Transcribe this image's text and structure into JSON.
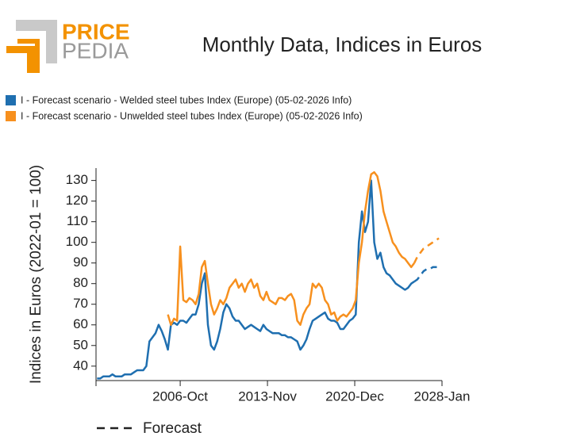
{
  "logo": {
    "top": "PRICE",
    "bottom": "PEDIA"
  },
  "chart_data": {
    "type": "line",
    "title": "Monthly Data, Indices in Euros",
    "y_label": "Indices in Euros (2022-01 = 100)",
    "forecast_label": "Forecast",
    "xlim": [
      "1999-Dec",
      "2028-Jan"
    ],
    "xticks": [
      "2006-Oct",
      "2013-Nov",
      "2020-Dec",
      "2028-Jan"
    ],
    "ylim": [
      33,
      136
    ],
    "yticks": [
      40,
      50,
      60,
      70,
      80,
      90,
      100,
      110,
      120,
      130
    ],
    "grid": false,
    "x": [
      "2000-Jan",
      "2000-Apr",
      "2000-Jul",
      "2000-Oct",
      "2001-Jan",
      "2001-Apr",
      "2001-Jul",
      "2001-Oct",
      "2002-Jan",
      "2002-Apr",
      "2002-Jul",
      "2002-Oct",
      "2003-Jan",
      "2003-Apr",
      "2003-Jul",
      "2003-Oct",
      "2004-Jan",
      "2004-Apr",
      "2004-Jul",
      "2004-Oct",
      "2005-Jan",
      "2005-Apr",
      "2005-Jul",
      "2005-Oct",
      "2006-Jan",
      "2006-Apr",
      "2006-Jul",
      "2006-Oct",
      "2007-Jan",
      "2007-Apr",
      "2007-Jul",
      "2007-Oct",
      "2008-Jan",
      "2008-Apr",
      "2008-Jul",
      "2008-Oct",
      "2009-Jan",
      "2009-Apr",
      "2009-Jul",
      "2009-Oct",
      "2010-Jan",
      "2010-Apr",
      "2010-Jul",
      "2010-Oct",
      "2011-Jan",
      "2011-Apr",
      "2011-Jul",
      "2011-Oct",
      "2012-Jan",
      "2012-Apr",
      "2012-Jul",
      "2012-Oct",
      "2013-Jan",
      "2013-Apr",
      "2013-Jul",
      "2013-Oct",
      "2014-Jan",
      "2014-Apr",
      "2014-Jul",
      "2014-Oct",
      "2015-Jan",
      "2015-Apr",
      "2015-Jul",
      "2015-Oct",
      "2016-Jan",
      "2016-Apr",
      "2016-Jul",
      "2016-Oct",
      "2017-Jan",
      "2017-Apr",
      "2017-Jul",
      "2017-Oct",
      "2018-Jan",
      "2018-Apr",
      "2018-Jul",
      "2018-Oct",
      "2019-Jan",
      "2019-Apr",
      "2019-Jul",
      "2019-Oct",
      "2020-Jan",
      "2020-Apr",
      "2020-Jul",
      "2020-Oct",
      "2021-Jan",
      "2021-Apr",
      "2021-Jul",
      "2021-Oct",
      "2022-Jan",
      "2022-Apr",
      "2022-Jul",
      "2022-Oct",
      "2023-Jan",
      "2023-Apr",
      "2023-Jul",
      "2023-Oct",
      "2024-Jan",
      "2024-Apr",
      "2024-Jul",
      "2024-Oct",
      "2025-Jan",
      "2025-Apr",
      "2025-Jul",
      "2025-Oct",
      "2026-Jan",
      "2026-Apr",
      "2026-Jul",
      "2026-Oct",
      "2027-Jan",
      "2027-Apr",
      "2027-Jul",
      "2027-Oct"
    ],
    "series": [
      {
        "name": "I - Forecast scenario - Welded steel tubes Index (Europe) (05-02-2026 Info)",
        "color": "#1f6fb0",
        "values": [
          34,
          34,
          35,
          35,
          35,
          36,
          35,
          35,
          35,
          36,
          36,
          36,
          37,
          38,
          38,
          38,
          40,
          52,
          54,
          56,
          60,
          57,
          53,
          48,
          60,
          61,
          60,
          62,
          62,
          61,
          63,
          65,
          65,
          70,
          80,
          85,
          60,
          50,
          48,
          52,
          58,
          66,
          70,
          68,
          64,
          62,
          62,
          60,
          58,
          59,
          60,
          59,
          58,
          57,
          60,
          58,
          57,
          56,
          56,
          56,
          55,
          55,
          54,
          54,
          53,
          52,
          48,
          50,
          53,
          58,
          62,
          63,
          64,
          65,
          66,
          63,
          62,
          62,
          61,
          58,
          58,
          60,
          62,
          63,
          65,
          100,
          115,
          105,
          110,
          130,
          100,
          92,
          95,
          88,
          85,
          84,
          82,
          80,
          79,
          78,
          77,
          78,
          80,
          81,
          null,
          null,
          null,
          null,
          null,
          null,
          null,
          null
        ],
        "forecast_values": [
          null,
          null,
          null,
          null,
          null,
          null,
          null,
          null,
          null,
          null,
          null,
          null,
          null,
          null,
          null,
          null,
          null,
          null,
          null,
          null,
          null,
          null,
          null,
          null,
          null,
          null,
          null,
          null,
          null,
          null,
          null,
          null,
          null,
          null,
          null,
          null,
          null,
          null,
          null,
          null,
          null,
          null,
          null,
          null,
          null,
          null,
          null,
          null,
          null,
          null,
          null,
          null,
          null,
          null,
          null,
          null,
          null,
          null,
          null,
          null,
          null,
          null,
          null,
          null,
          null,
          null,
          null,
          null,
          null,
          null,
          null,
          null,
          null,
          null,
          null,
          null,
          null,
          null,
          null,
          null,
          null,
          null,
          null,
          null,
          null,
          null,
          null,
          null,
          null,
          null,
          null,
          null,
          null,
          null,
          null,
          null,
          null,
          null,
          null,
          null,
          null,
          null,
          null,
          81,
          82,
          84,
          86,
          87,
          87,
          88,
          88,
          88
        ]
      },
      {
        "name": "I - Forecast scenario - Unwelded steel tubes Index (Europe) (05-02-2026 Info)",
        "color": "#f7901e",
        "values": [
          null,
          null,
          null,
          null,
          null,
          null,
          null,
          null,
          null,
          null,
          null,
          null,
          null,
          null,
          null,
          null,
          null,
          null,
          null,
          null,
          null,
          null,
          null,
          65,
          60,
          63,
          62,
          98,
          72,
          71,
          73,
          72,
          70,
          75,
          88,
          91,
          80,
          70,
          65,
          68,
          72,
          70,
          73,
          78,
          80,
          82,
          78,
          80,
          76,
          80,
          82,
          78,
          80,
          74,
          72,
          76,
          72,
          71,
          70,
          73,
          73,
          72,
          74,
          75,
          72,
          62,
          60,
          65,
          68,
          70,
          80,
          78,
          80,
          78,
          72,
          70,
          65,
          66,
          62,
          64,
          65,
          64,
          66,
          68,
          72,
          90,
          100,
          115,
          125,
          133,
          134,
          132,
          125,
          115,
          110,
          105,
          100,
          98,
          95,
          93,
          92,
          90,
          88,
          90,
          null,
          null,
          null,
          null,
          null,
          null,
          null,
          null
        ],
        "forecast_values": [
          null,
          null,
          null,
          null,
          null,
          null,
          null,
          null,
          null,
          null,
          null,
          null,
          null,
          null,
          null,
          null,
          null,
          null,
          null,
          null,
          null,
          null,
          null,
          null,
          null,
          null,
          null,
          null,
          null,
          null,
          null,
          null,
          null,
          null,
          null,
          null,
          null,
          null,
          null,
          null,
          null,
          null,
          null,
          null,
          null,
          null,
          null,
          null,
          null,
          null,
          null,
          null,
          null,
          null,
          null,
          null,
          null,
          null,
          null,
          null,
          null,
          null,
          null,
          null,
          null,
          null,
          null,
          null,
          null,
          null,
          null,
          null,
          null,
          null,
          null,
          null,
          null,
          null,
          null,
          null,
          null,
          null,
          null,
          null,
          null,
          null,
          null,
          null,
          null,
          null,
          null,
          null,
          null,
          null,
          null,
          null,
          null,
          null,
          null,
          null,
          null,
          null,
          null,
          90,
          93,
          95,
          97,
          98,
          99,
          100,
          101,
          102
        ]
      }
    ]
  }
}
